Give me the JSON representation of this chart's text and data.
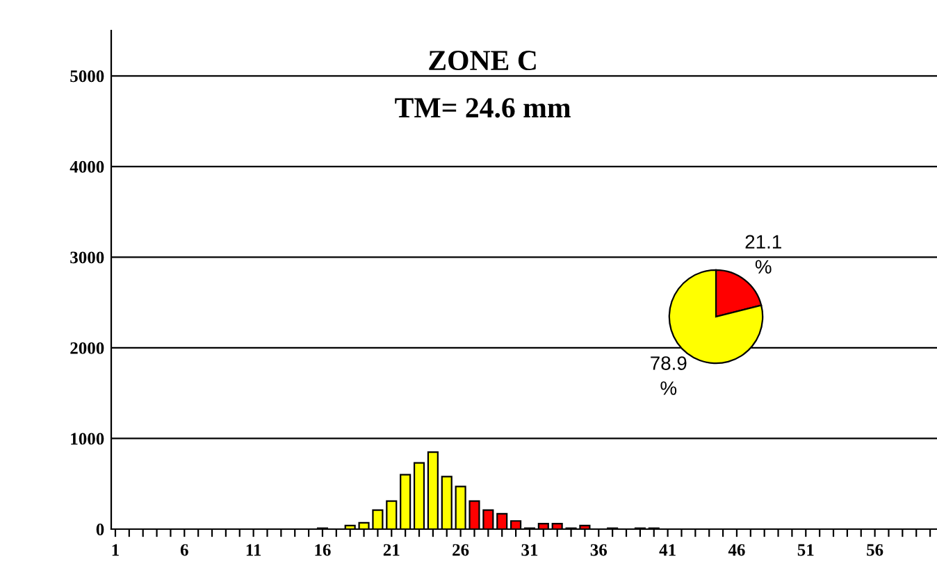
{
  "chart_data": [
    {
      "type": "bar",
      "title": "ZONE C",
      "subtitle": "TM= 24.6 mm",
      "categories": [
        "1",
        null,
        null,
        null,
        null,
        "6",
        null,
        null,
        null,
        null,
        "11",
        null,
        null,
        null,
        null,
        "16",
        null,
        null,
        null,
        null,
        "21",
        null,
        null,
        null,
        null,
        "26",
        null,
        null,
        null,
        null,
        "31",
        null,
        null,
        null,
        null,
        "36",
        null,
        null,
        null,
        null,
        "41",
        null,
        null,
        null,
        null,
        "46",
        null,
        null,
        null,
        null,
        "51",
        null,
        null,
        null,
        null,
        "56",
        null,
        null,
        null,
        null
      ],
      "values": [
        null,
        null,
        null,
        null,
        null,
        null,
        null,
        null,
        null,
        null,
        null,
        null,
        null,
        null,
        null,
        10,
        null,
        40,
        70,
        210,
        310,
        600,
        730,
        850,
        580,
        470,
        310,
        210,
        170,
        90,
        10,
        60,
        60,
        10,
        40,
        null,
        10,
        null,
        10,
        10,
        null,
        null,
        null,
        null,
        null,
        null,
        null,
        null,
        null,
        null,
        null,
        null,
        null,
        null,
        null,
        null,
        null,
        null,
        null,
        null
      ],
      "colors": [
        "#ffff00",
        "#ffff00",
        "#ffff00",
        "#ffff00",
        "#ffff00",
        "#ffff00",
        "#ffff00",
        "#ffff00",
        "#ffff00",
        "#ffff00",
        "#ffff00",
        "#ffff00",
        "#ffff00",
        "#ffff00",
        "#ffff00",
        "#ffff00",
        "#ffff00",
        "#ffff00",
        "#ffff00",
        "#ffff00",
        "#ffff00",
        "#ffff00",
        "#ffff00",
        "#ffff00",
        "#ffff00",
        "#ffff00",
        "#ff0000",
        "#ff0000",
        "#ff0000",
        "#ff0000",
        "#ff0000",
        "#ff0000",
        "#ff0000",
        "#ff0000",
        "#ff0000",
        "#ff0000",
        "#ff0000",
        "#ff0000",
        "#ff0000",
        "#ff0000",
        "#ff0000",
        "#ff0000",
        "#ff0000",
        "#ff0000",
        "#ff0000",
        "#ff0000",
        "#ff0000",
        "#ff0000",
        "#ff0000",
        "#ff0000",
        "#ff0000",
        "#ff0000",
        "#ff0000",
        "#ff0000",
        "#ff0000",
        "#ff0000",
        "#ff0000",
        "#ff0000",
        "#ff0000",
        "#ff0000"
      ],
      "ylim": [
        0,
        5500
      ],
      "yticks": [
        0,
        1000,
        2000,
        3000,
        4000,
        5000
      ],
      "grid": "y"
    },
    {
      "type": "pie",
      "categories": [
        null,
        null
      ],
      "values": [
        21.1,
        78.9
      ],
      "colors": [
        "#ff0000",
        "#ffff00"
      ],
      "value_labels": [
        "21.1\n%",
        "78.9\n%"
      ]
    }
  ]
}
